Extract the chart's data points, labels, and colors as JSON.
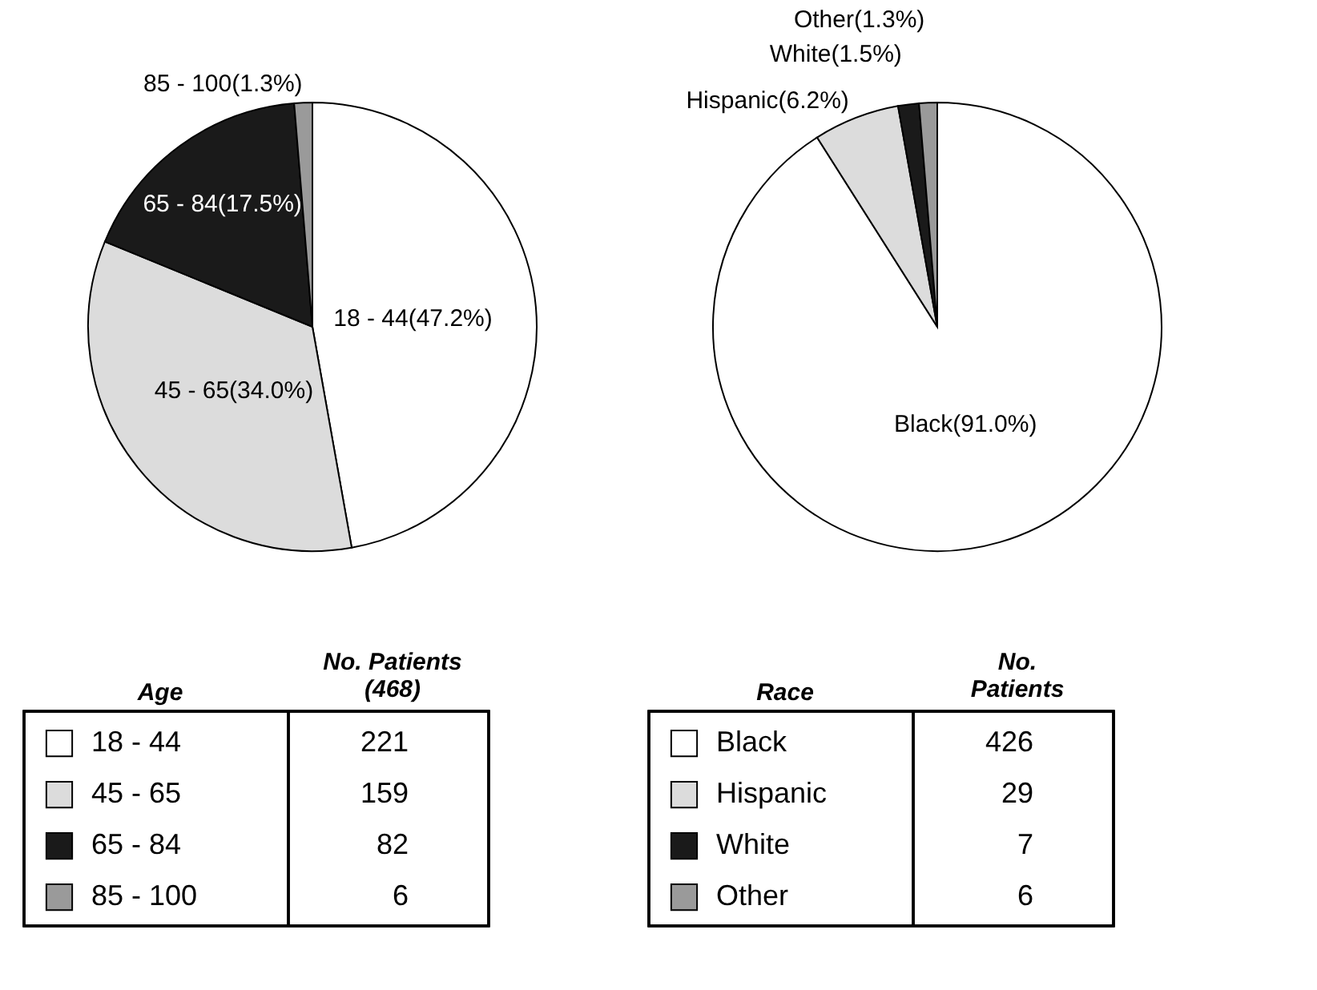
{
  "chart_data": [
    {
      "type": "pie",
      "categories": [
        "18 - 44",
        "45 - 65",
        "65 - 84",
        "85 - 100"
      ],
      "values": [
        47.2,
        34.0,
        17.5,
        1.3
      ],
      "colors": [
        "#ffffff",
        "#dcdcdc",
        "#1a1a1a",
        "#9a9a9a"
      ],
      "value_labels": [
        "18 - 44(47.2%)",
        "45 - 65(34.0%)",
        "65 - 84(17.5%)",
        "85 - 100(1.3%)"
      ],
      "legend": "bottom",
      "legend_title": "Age",
      "annotations": [
        "No. Patients\n(468)",
        "221",
        "159",
        "82",
        "6"
      ]
    },
    {
      "type": "pie",
      "categories": [
        "Black",
        "Hispanic",
        "White",
        "Other"
      ],
      "values": [
        91.0,
        6.2,
        1.5,
        1.3
      ],
      "colors": [
        "#ffffff",
        "#dcdcdc",
        "#1a1a1a",
        "#9a9a9a"
      ],
      "value_labels": [
        "Black(91.0%)",
        "Hispanic(6.2%)",
        "White(1.5%)",
        "Other(1.3%)"
      ],
      "legend": "bottom",
      "legend_title": "Race",
      "annotations": [
        "No.\nPatients",
        "426",
        "29",
        "7",
        "6"
      ]
    }
  ]
}
